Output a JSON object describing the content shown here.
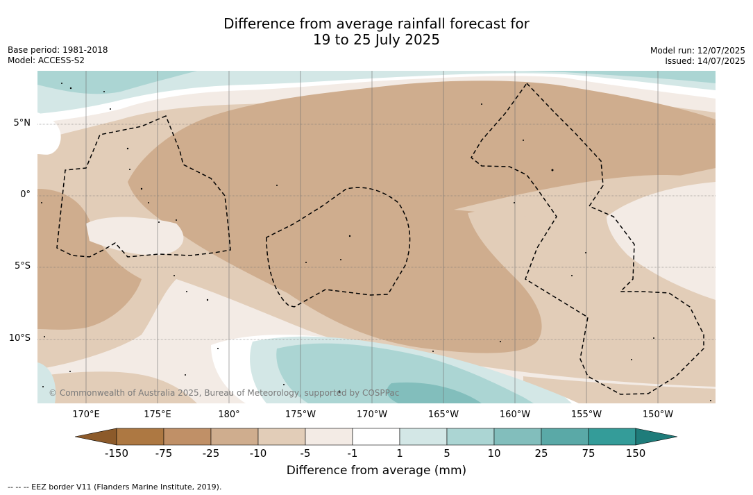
{
  "title": {
    "line1": "Difference from average rainfall forecast for",
    "line2": "19 to 25 July 2025"
  },
  "meta_left": {
    "base_period": "Base period: 1981-2018",
    "model": "Model: ACCESS-S2"
  },
  "meta_right": {
    "model_run": "Model run: 12/07/2025",
    "issued": "Issued: 14/07/2025"
  },
  "map": {
    "lat_labels": [
      "5°N",
      "0°",
      "5°S",
      "10°S"
    ],
    "lon_labels": [
      "170°E",
      "175°E",
      "180°",
      "175°W",
      "170°W",
      "165°W",
      "160°W",
      "155°W",
      "150°W"
    ],
    "copyright": "© Commonwealth of Australia 2025, Bureau of Meteorology, supported by COSPPac"
  },
  "colorbar": {
    "ticks": [
      "-150",
      "-75",
      "-25",
      "-10",
      "-5",
      "-1",
      "1",
      "5",
      "10",
      "25",
      "75",
      "150"
    ],
    "colors": [
      "#8c5a2a",
      "#ad7842",
      "#c09067",
      "#cfad8e",
      "#e2cdb8",
      "#f3ebe5",
      "#ffffff",
      "#d3e7e6",
      "#abd5d3",
      "#82bebc",
      "#5aa9a7",
      "#349c99",
      "#1f7c7a"
    ],
    "title": "Difference from average (mm)"
  },
  "footnote": "--  --  -- EEZ border V11 (Flanders Marine Institute, 2019)."
}
